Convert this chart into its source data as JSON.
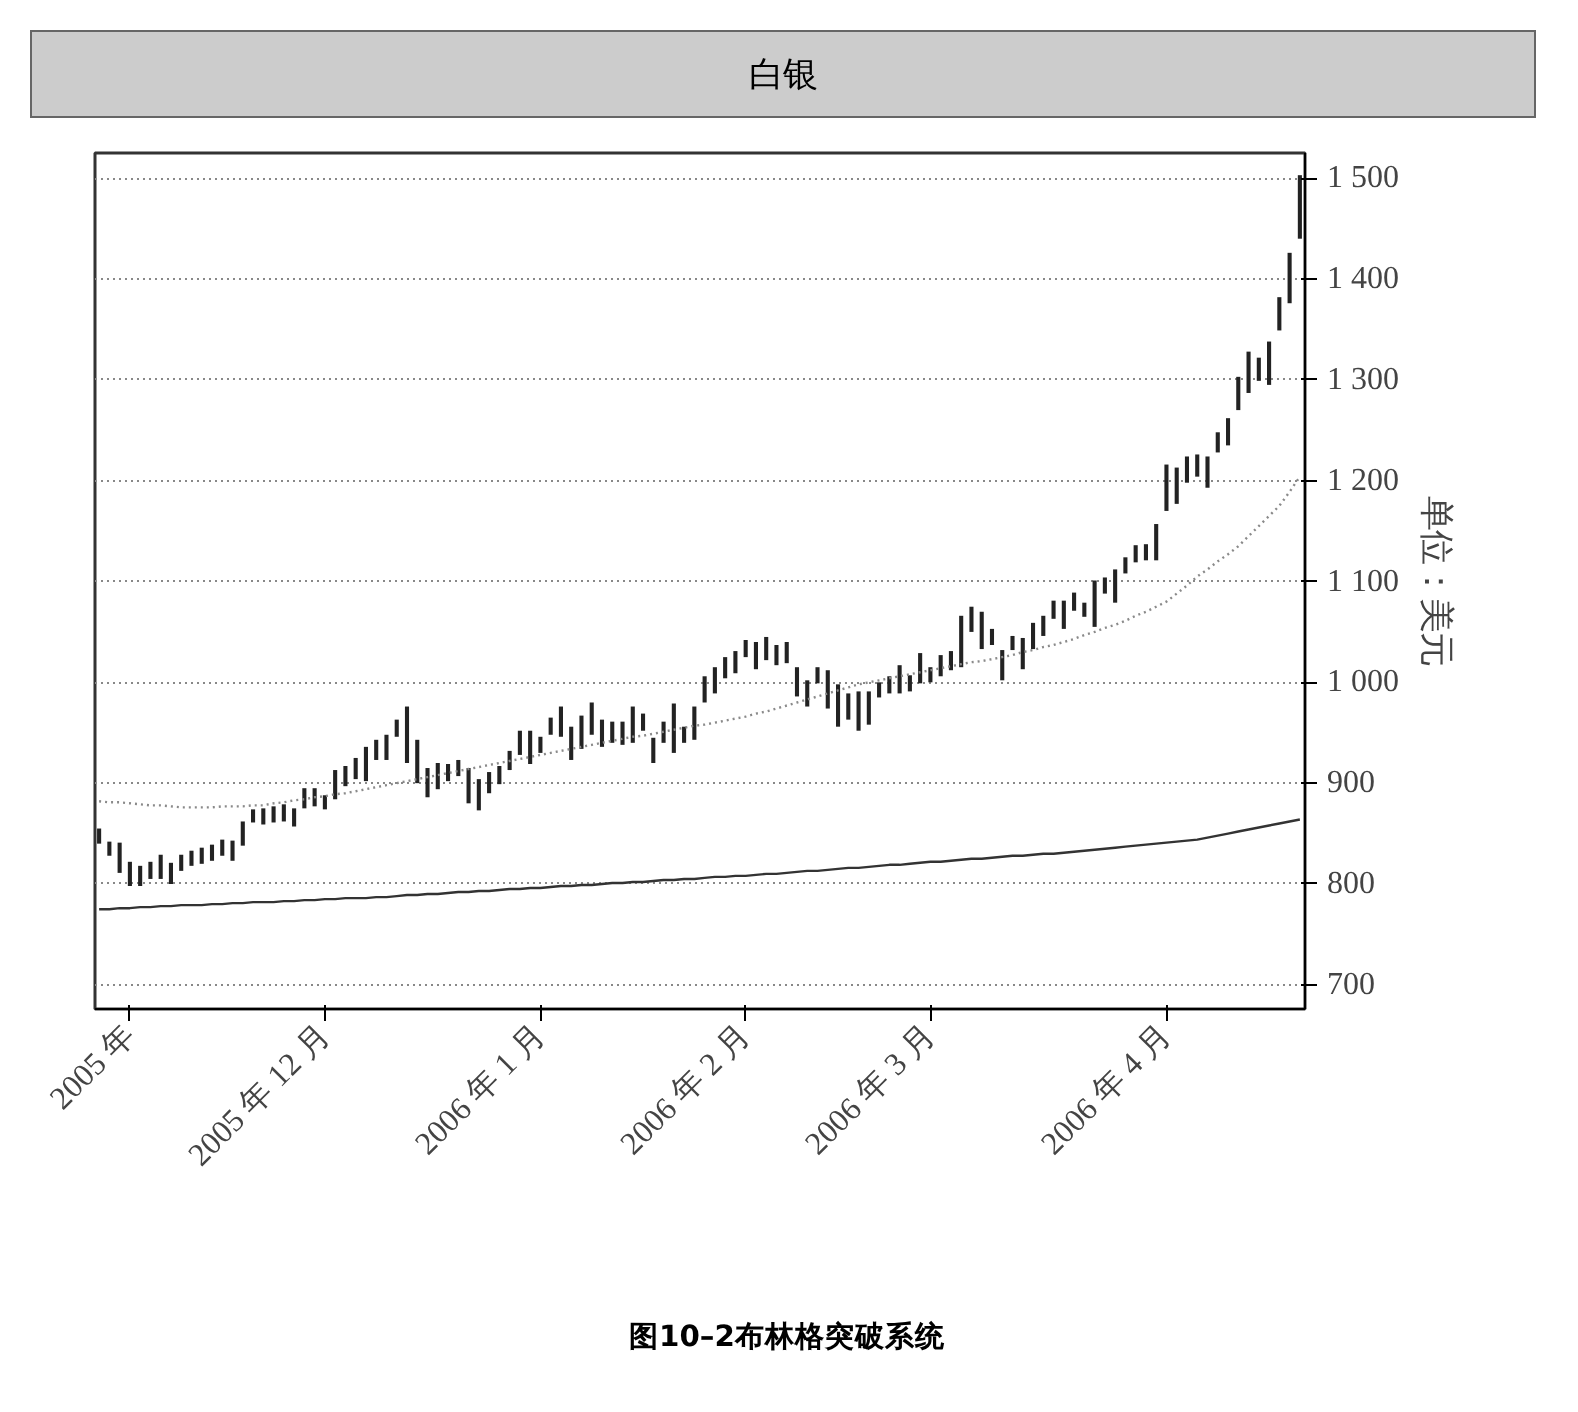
{
  "chart_data": {
    "type": "bar",
    "title": "白银",
    "ylabel": "单位：美元",
    "annotations": [
      "图10–2布林格突破系统"
    ],
    "categories": [
      null,
      null,
      null,
      "2005 年",
      null,
      null,
      null,
      null,
      null,
      null,
      null,
      null,
      null,
      null,
      null,
      null,
      null,
      null,
      null,
      null,
      null,
      null,
      "2005 年 12 月",
      null,
      null,
      null,
      null,
      null,
      null,
      null,
      null,
      null,
      null,
      null,
      null,
      null,
      null,
      null,
      null,
      null,
      null,
      null,
      null,
      "2006 年 1 月",
      null,
      null,
      null,
      null,
      null,
      null,
      null,
      null,
      null,
      null,
      null,
      null,
      null,
      null,
      null,
      null,
      null,
      null,
      null,
      "2006 年 2 月",
      null,
      null,
      null,
      null,
      null,
      null,
      null,
      null,
      null,
      null,
      null,
      null,
      null,
      null,
      null,
      null,
      null,
      "2006 年 3 月",
      null,
      null,
      null,
      null,
      null,
      null,
      null,
      null,
      null,
      null,
      null,
      null,
      null,
      null,
      null,
      null,
      null,
      null,
      null,
      null,
      null,
      null,
      "2006 年 4 月",
      null,
      null,
      null,
      null,
      null,
      null,
      null,
      null,
      null,
      null,
      null,
      null,
      null
    ],
    "ylim": [
      676,
      1525
    ],
    "yticks": [
      700,
      800,
      900,
      {
        "value": 1000,
        "label": "1 000"
      },
      {
        "value": 1100,
        "label": "1 100"
      },
      {
        "value": 1200,
        "label": "1 200"
      },
      {
        "value": 1300,
        "label": "1 300"
      },
      {
        "value": 1400,
        "label": "1 400"
      },
      {
        "value": 1500,
        "label": "1 500"
      }
    ],
    "grid": "y",
    "series": [
      {
        "color": "#222222",
        "base": [
          840,
          828,
          811,
          798,
          798,
          805,
          805,
          800,
          813,
          818,
          820,
          823,
          828,
          823,
          838,
          861,
          859,
          861,
          862,
          857,
          875,
          877,
          874,
          884,
          897,
          904,
          902,
          923,
          923,
          946,
          920,
          900,
          886,
          894,
          902,
          907,
          880,
          873,
          890,
          899,
          913,
          928,
          919,
          930,
          948,
          946,
          923,
          934,
          948,
          936,
          940,
          938,
          940,
          952,
          920,
          940,
          930,
          940,
          943,
          980,
          989,
          1004,
          1009,
          1025,
          1013,
          1022,
          1017,
          1019,
          986,
          976,
          999,
          974,
          956,
          963,
          952,
          958,
          985,
          989,
          989,
          991,
          999,
          1000,
          1006,
          1012,
          1015,
          1050,
          1033,
          1037,
          1002,
          1032,
          1013,
          1033,
          1046,
          1063,
          1053,
          1071,
          1065,
          1055,
          1088,
          1079,
          1108,
          1119,
          1121,
          1121,
          1170,
          1177,
          1198,
          1204,
          1193,
          1228,
          1235,
          1270,
          1287,
          1299,
          1295,
          1349,
          1376,
          1440
        ],
        "values": [
          15,
          14,
          30,
          24,
          20,
          17,
          24,
          21,
          16,
          15,
          16,
          16,
          16,
          20,
          24,
          13,
          16,
          16,
          17,
          18,
          20,
          18,
          14,
          29,
          20,
          21,
          34,
          20,
          25,
          17,
          56,
          43,
          29,
          26,
          17,
          16,
          35,
          31,
          21,
          18,
          19,
          24,
          33,
          16,
          17,
          30,
          33,
          33,
          32,
          27,
          21,
          23,
          36,
          17,
          25,
          21,
          49,
          16,
          33,
          26,
          26,
          21,
          22,
          17,
          27,
          23,
          20,
          21,
          29,
          26,
          16,
          38,
          42,
          26,
          39,
          33,
          15,
          17,
          28,
          16,
          30,
          15,
          21,
          19,
          51,
          25,
          37,
          16,
          30,
          14,
          31,
          26,
          20,
          18,
          28,
          18,
          14,
          46,
          16,
          33,
          16,
          17,
          16,
          36,
          46,
          36,
          26,
          22,
          31,
          20,
          27,
          33,
          41,
          23,
          43,
          33,
          50,
          63
        ]
      },
      {
        "type": "line",
        "color": "#8a8a8a",
        "line_style": "dotted",
        "values": [
          882,
          881,
          881,
          880,
          879,
          878,
          878,
          877,
          876,
          876,
          876,
          876,
          877,
          877,
          877,
          878,
          878,
          880,
          881,
          883,
          884,
          886,
          887,
          889,
          890,
          892,
          894,
          896,
          898,
          900,
          902,
          904,
          906,
          908,
          910,
          912,
          914,
          916,
          918,
          920,
          922,
          924,
          926,
          928,
          930,
          932,
          934,
          936,
          938,
          940,
          942,
          944,
          946,
          947,
          949,
          951,
          953,
          955,
          957,
          958,
          960,
          962,
          964,
          966,
          969,
          971,
          974,
          977,
          980,
          983,
          986,
          989,
          992,
          995,
          998,
          1000,
          1002,
          1004,
          1006,
          1008,
          1010,
          1012,
          1014,
          1016,
          1018,
          1020,
          1021,
          1023,
          1025,
          1027,
          1030,
          1032,
          1035,
          1037,
          1040,
          1043,
          1047,
          1050,
          1054,
          1057,
          1061,
          1066,
          1070,
          1075,
          1080,
          1088,
          1096,
          1105,
          1112,
          1120,
          1127,
          1135,
          1145,
          1155,
          1165,
          1175,
          1189,
          1204
        ]
      },
      {
        "type": "line",
        "color": "#333333",
        "line_style": "solid",
        "values": [
          775,
          775,
          776,
          776,
          777,
          777,
          778,
          778,
          779,
          779,
          779,
          780,
          780,
          781,
          781,
          782,
          782,
          782,
          783,
          783,
          784,
          784,
          785,
          785,
          786,
          786,
          786,
          787,
          787,
          788,
          789,
          789,
          790,
          790,
          791,
          792,
          792,
          793,
          793,
          794,
          795,
          795,
          796,
          796,
          797,
          798,
          798,
          799,
          799,
          800,
          801,
          801,
          802,
          802,
          803,
          804,
          804,
          805,
          805,
          806,
          807,
          807,
          808,
          808,
          809,
          810,
          810,
          811,
          812,
          813,
          813,
          814,
          815,
          816,
          816,
          817,
          818,
          819,
          819,
          820,
          821,
          822,
          822,
          823,
          824,
          825,
          825,
          826,
          827,
          828,
          828,
          829,
          830,
          830,
          831,
          832,
          833,
          834,
          835,
          836,
          837,
          838,
          839,
          840,
          841,
          842,
          843,
          844,
          846,
          848,
          850,
          852,
          854,
          856,
          858,
          860,
          862,
          864
        ]
      }
    ]
  }
}
